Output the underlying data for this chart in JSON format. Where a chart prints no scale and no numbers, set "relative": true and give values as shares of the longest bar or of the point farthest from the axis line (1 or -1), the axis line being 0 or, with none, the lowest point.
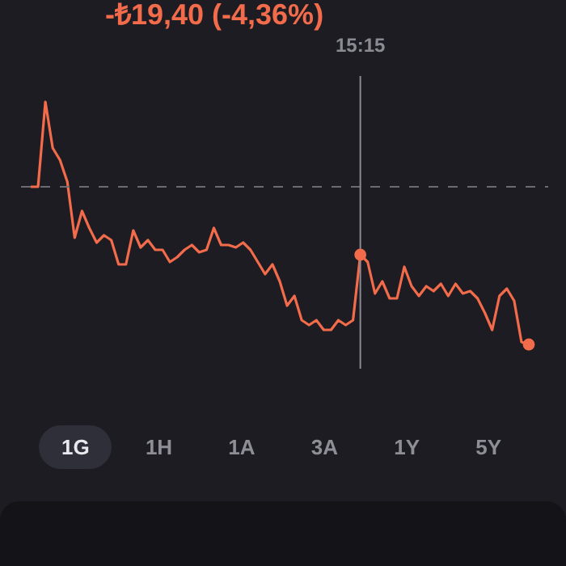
{
  "chart_data": {
    "type": "line",
    "title": "-₺19,40 (-4,36%)",
    "relative": true,
    "categories": [
      null,
      null,
      null,
      null,
      null,
      null,
      null,
      null,
      null,
      null,
      null,
      null,
      null,
      null,
      null,
      null,
      null,
      null,
      null,
      null,
      null,
      null,
      null,
      null,
      null,
      null,
      null,
      null,
      null,
      null,
      null,
      null,
      null,
      null,
      null,
      null,
      null,
      null,
      null,
      null,
      null,
      null,
      null,
      null,
      null,
      null,
      null,
      null,
      null,
      null,
      null,
      null,
      null,
      null,
      null,
      null,
      null,
      null,
      null,
      null,
      null,
      null,
      null,
      null,
      null,
      null,
      null,
      null,
      null
    ],
    "series": [
      {
        "color": "#f26b4a",
        "values": [
          0.65,
          0.65,
          1.0,
          0.81,
          0.76,
          0.67,
          0.44,
          0.55,
          0.48,
          0.42,
          0.45,
          0.43,
          0.33,
          0.33,
          0.47,
          0.4,
          0.43,
          0.39,
          0.39,
          0.34,
          0.36,
          0.39,
          0.41,
          0.38,
          0.39,
          0.48,
          0.41,
          0.41,
          0.4,
          0.42,
          0.39,
          0.34,
          0.29,
          0.33,
          0.26,
          0.16,
          0.2,
          0.1,
          0.08,
          0.1,
          0.06,
          0.06,
          0.1,
          0.08,
          0.1,
          0.37,
          0.34,
          0.21,
          0.26,
          0.19,
          0.19,
          0.32,
          0.24,
          0.2,
          0.24,
          0.22,
          0.25,
          0.2,
          0.25,
          0.21,
          0.22,
          0.19,
          0.13,
          0.06,
          0.2,
          0.23,
          0.18,
          0.01,
          0.0
        ]
      }
    ],
    "ref_lines": [
      {
        "axis": "y",
        "value": 0.65,
        "color": "#6b6b73",
        "line_style": "dashed"
      }
    ],
    "annotations": [
      "15:15",
      "1G",
      "1H",
      "1A",
      "3A",
      "1Y",
      "5Y"
    ]
  }
}
